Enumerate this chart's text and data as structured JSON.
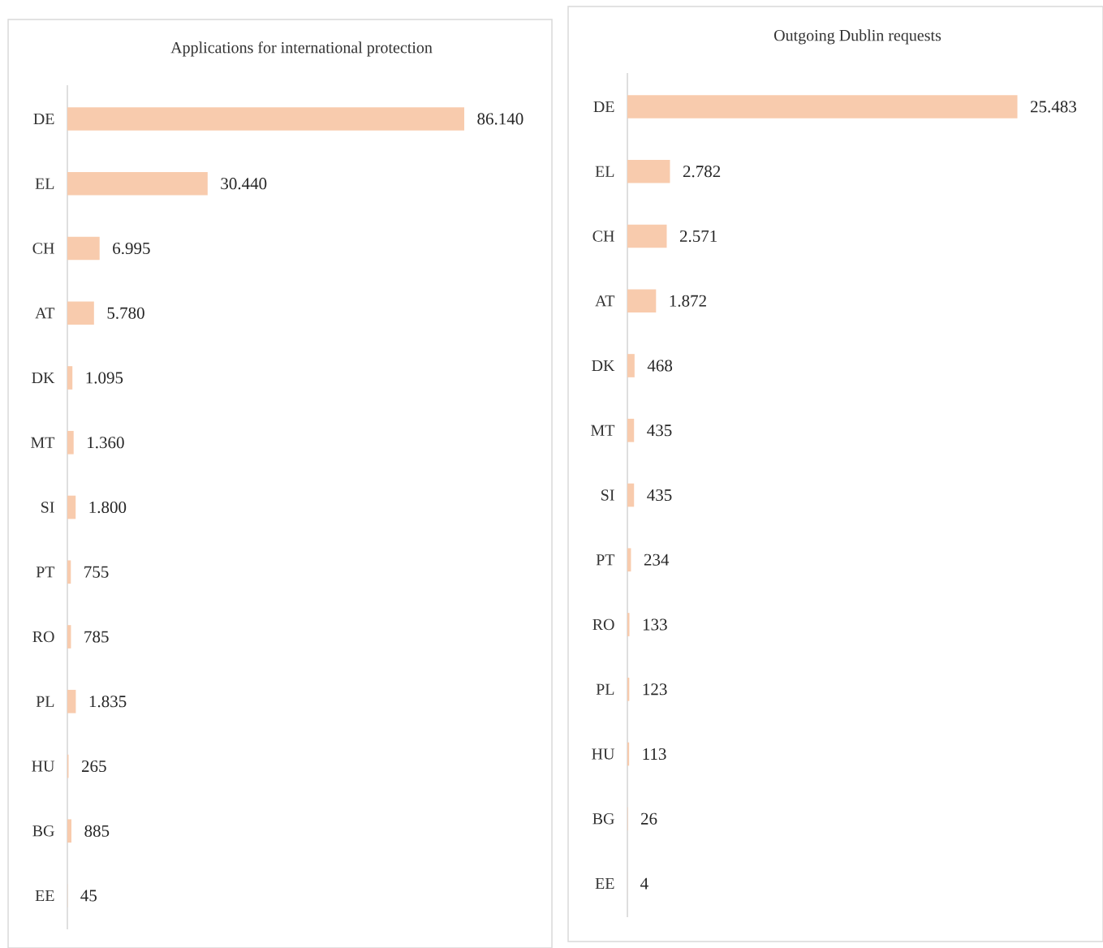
{
  "chart_data": [
    {
      "type": "bar",
      "orientation": "horizontal",
      "title": "Applications for international protection",
      "color": "#f8cbad",
      "categories": [
        "DE",
        "EL",
        "CH",
        "AT",
        "DK",
        "MT",
        "SI",
        "PT",
        "RO",
        "PL",
        "HU",
        "BG",
        "EE"
      ],
      "values": [
        86140,
        30440,
        6995,
        5780,
        1095,
        1360,
        1800,
        755,
        785,
        1835,
        265,
        885,
        45
      ],
      "value_labels": [
        "86.140",
        "30.440",
        "6.995",
        "5.780",
        "1.095",
        "1.360",
        "1.800",
        "755",
        "785",
        "1.835",
        "265",
        "885",
        "45"
      ]
    },
    {
      "type": "bar",
      "orientation": "horizontal",
      "title": "Outgoing Dublin requests",
      "color": "#f8cbad",
      "categories": [
        "DE",
        "EL",
        "CH",
        "AT",
        "DK",
        "MT",
        "SI",
        "PT",
        "RO",
        "PL",
        "HU",
        "BG",
        "EE"
      ],
      "values": [
        25483,
        2782,
        2571,
        1872,
        468,
        435,
        435,
        234,
        133,
        123,
        113,
        26,
        4
      ],
      "value_labels": [
        "25.483",
        "2.782",
        "2.571",
        "1.872",
        "468",
        "435",
        "435",
        "234",
        "133",
        "123",
        "113",
        "26",
        "4"
      ]
    }
  ]
}
